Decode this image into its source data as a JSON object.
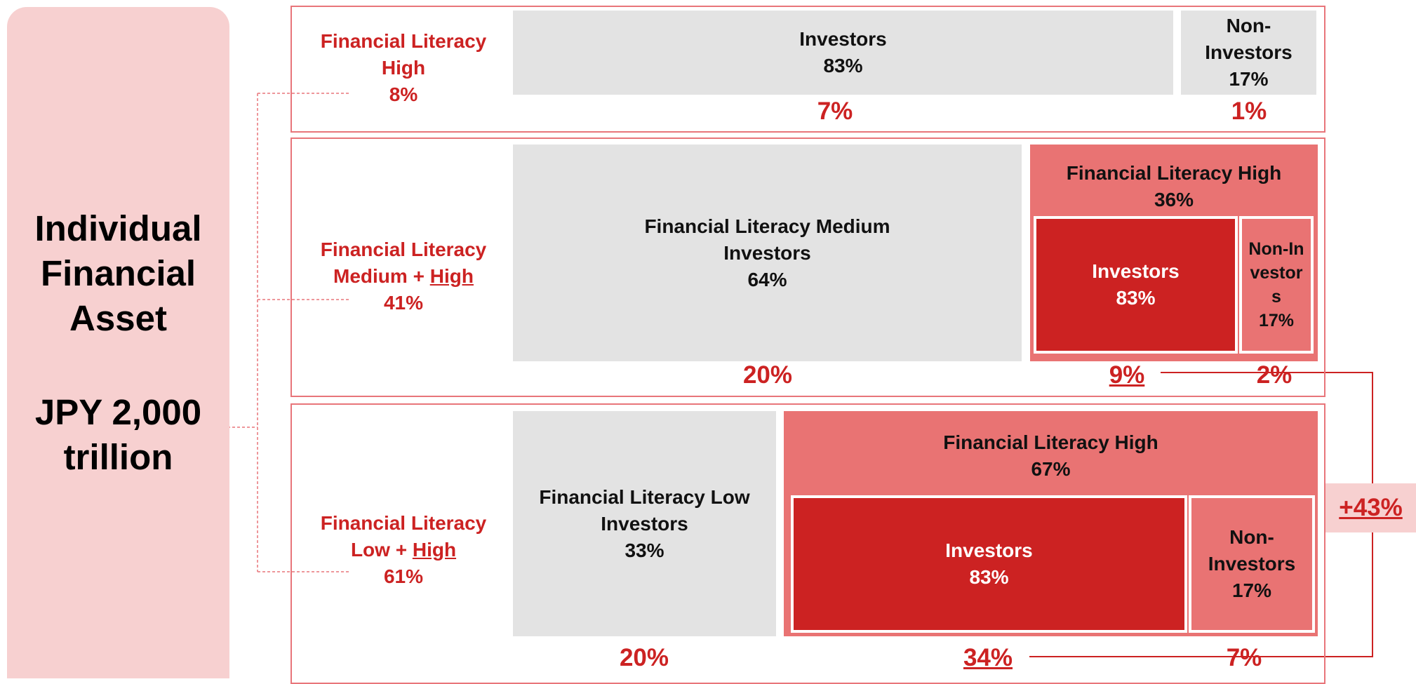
{
  "panel": {
    "title": "Individual Financial Asset",
    "amount": "JPY 2,000 trillion"
  },
  "rows": [
    {
      "label": "Financial Literacy High",
      "share": "8%",
      "investors": {
        "label": "Investors",
        "pct": "83%"
      },
      "non_investors": {
        "label": "Non-Investors",
        "pct": "17%"
      },
      "results": [
        "7%",
        "1%"
      ]
    },
    {
      "label": "Financial Literacy Medium +",
      "label_underlined": "High",
      "share": "41%",
      "main": {
        "label": "Financial Literacy Medium Investors",
        "pct": "64%"
      },
      "group": {
        "label": "Financial Literacy High",
        "pct": "36%",
        "investors": {
          "label": "Investors",
          "pct": "83%"
        },
        "non_investors": {
          "label": "Non-Investors",
          "pct": "17%"
        }
      },
      "results": [
        "20%",
        "9%",
        "2%"
      ]
    },
    {
      "label": "Financial Literacy Low +",
      "label_underlined": "High",
      "share": "61%",
      "main": {
        "label": "Financial Literacy Low Investors",
        "pct": "33%"
      },
      "group": {
        "label": "Financial Literacy High",
        "pct": "67%",
        "investors": {
          "label": "Investors",
          "pct": "83%"
        },
        "non_investors": {
          "label": "Non-Investors",
          "pct": "17%"
        }
      },
      "results": [
        "20%",
        "34%",
        "7%"
      ]
    }
  ],
  "total_increase": "+43%"
}
